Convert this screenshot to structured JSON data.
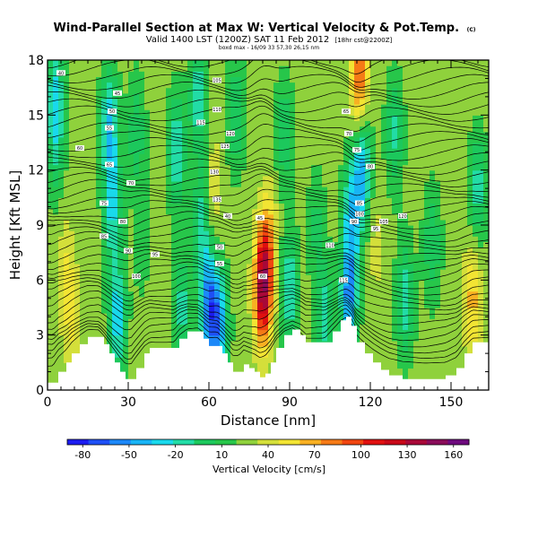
{
  "chart_data": {
    "type": "heatmap",
    "title": "Wind-Parallel Section at Max W: Vertical Velocity & Pot.Temp.",
    "title_mark": "(C)",
    "subtitle": "Valid 1400 LST (1200Z) SAT 11 Feb 2012",
    "subtitle_note": "[18hr cst@2200Z]",
    "credit": "boxd max - 16/09 33 57,30 26,15 nm",
    "xlabel": "Distance [nm]",
    "ylabel": "Height [Kft MSL]",
    "xlim": [
      0,
      164
    ],
    "ylim": [
      0,
      18
    ],
    "x_ticks": [
      0,
      30,
      60,
      90,
      120,
      150
    ],
    "y_ticks": [
      0,
      3,
      6,
      9,
      12,
      15,
      18
    ],
    "colorbar": {
      "label": "Vertical Velocity [cm/s]",
      "ticks": [
        -80,
        -50,
        -20,
        10,
        40,
        70,
        100,
        130,
        160
      ],
      "range": [
        -90,
        170
      ],
      "colors": [
        "#1c1cf0",
        "#1e4ff5",
        "#1c88f8",
        "#18b4f5",
        "#19d9ec",
        "#22dca6",
        "#1cc85c",
        "#27c64a",
        "#8fd13c",
        "#d4df3a",
        "#f2e433",
        "#f8b022",
        "#f57a16",
        "#f04510",
        "#e01010",
        "#c80818",
        "#a80838",
        "#8a0c5a",
        "#6e0a7e"
      ]
    },
    "series": [
      {
        "name": "Vertical Velocity [cm/s]",
        "type": "heatmap",
        "unit": "cm/s",
        "background_value": 25,
        "cores": [
          {
            "x": 3,
            "y": 16.5,
            "w": -20
          },
          {
            "x": 3,
            "y": 13.5,
            "w": -10
          },
          {
            "x": 7,
            "y": 6,
            "w": 55
          },
          {
            "x": 10,
            "y": 3,
            "w": 45
          },
          {
            "x": 23,
            "y": 14.5,
            "w": -40
          },
          {
            "x": 24,
            "y": 10,
            "w": -30
          },
          {
            "x": 26,
            "y": 4,
            "w": -40
          },
          {
            "x": 33,
            "y": 14,
            "w": -10
          },
          {
            "x": 35,
            "y": 8,
            "w": 10
          },
          {
            "x": 48,
            "y": 13,
            "w": -30
          },
          {
            "x": 50,
            "y": 4.5,
            "w": -20
          },
          {
            "x": 56,
            "y": 16,
            "w": -25
          },
          {
            "x": 57,
            "y": 9,
            "w": -20
          },
          {
            "x": 60,
            "y": 4.5,
            "w": -70
          },
          {
            "x": 62,
            "y": 11,
            "w": 45
          },
          {
            "x": 64,
            "y": 3.5,
            "w": -50
          },
          {
            "x": 70,
            "y": 15,
            "w": -15
          },
          {
            "x": 80,
            "y": 5.5,
            "w": 150
          },
          {
            "x": 82,
            "y": 8,
            "w": 70
          },
          {
            "x": 90,
            "y": 5.5,
            "w": -30
          },
          {
            "x": 88,
            "y": 14,
            "w": -10
          },
          {
            "x": 100,
            "y": 9,
            "w": 0
          },
          {
            "x": 103,
            "y": 4,
            "w": -20
          },
          {
            "x": 112,
            "y": 5,
            "w": -60
          },
          {
            "x": 113,
            "y": 9.5,
            "w": -40
          },
          {
            "x": 116,
            "y": 17,
            "w": 95
          },
          {
            "x": 117,
            "y": 12,
            "w": -50
          },
          {
            "x": 122,
            "y": 8,
            "w": 40
          },
          {
            "x": 129,
            "y": 14,
            "w": -15
          },
          {
            "x": 133,
            "y": 5,
            "w": -25
          },
          {
            "x": 143,
            "y": 8,
            "w": -10
          },
          {
            "x": 158,
            "y": 5,
            "w": 70
          },
          {
            "x": 160,
            "y": 11,
            "w": -20
          }
        ]
      },
      {
        "name": "Potential Temperature",
        "type": "contour",
        "contour_labels": [
          "40",
          "45",
          "50",
          "55",
          "60",
          "65",
          "70",
          "75",
          "80",
          "85",
          "90",
          "95",
          "100",
          "105",
          "110",
          "115",
          "120",
          "125",
          "130",
          "135"
        ]
      }
    ],
    "terrain_nm_kft": [
      [
        0,
        0.4
      ],
      [
        2,
        0.4
      ],
      [
        4,
        1.0
      ],
      [
        7,
        1.5
      ],
      [
        9,
        2.0
      ],
      [
        12,
        2.5
      ],
      [
        15,
        2.9
      ],
      [
        19,
        2.9
      ],
      [
        21,
        2.5
      ],
      [
        23,
        2.0
      ],
      [
        25,
        1.5
      ],
      [
        27,
        1.0
      ],
      [
        29,
        0.6
      ],
      [
        31,
        0.6
      ],
      [
        33,
        1.2
      ],
      [
        36,
        2.0
      ],
      [
        38,
        2.3
      ],
      [
        43,
        2.3
      ],
      [
        47,
        2.3
      ],
      [
        49,
        2.8
      ],
      [
        52,
        3.2
      ],
      [
        56,
        3.2
      ],
      [
        58,
        2.8
      ],
      [
        60,
        2.4
      ],
      [
        63,
        2.4
      ],
      [
        65,
        2.0
      ],
      [
        67,
        1.5
      ],
      [
        69,
        1.0
      ],
      [
        71,
        1.0
      ],
      [
        73,
        1.4
      ],
      [
        75,
        1.2
      ],
      [
        77,
        1.0
      ],
      [
        79,
        0.7
      ],
      [
        81,
        0.9
      ],
      [
        83,
        1.5
      ],
      [
        85,
        2.3
      ],
      [
        88,
        3.0
      ],
      [
        91,
        3.3
      ],
      [
        94,
        3.0
      ],
      [
        96,
        2.6
      ],
      [
        99,
        2.6
      ],
      [
        103,
        2.6
      ],
      [
        106,
        3.2
      ],
      [
        109,
        3.8
      ],
      [
        111,
        4.0
      ],
      [
        113,
        3.5
      ],
      [
        115,
        2.6
      ],
      [
        118,
        2.0
      ],
      [
        121,
        1.5
      ],
      [
        124,
        1.1
      ],
      [
        127,
        0.8
      ],
      [
        132,
        0.6
      ],
      [
        140,
        0.6
      ],
      [
        148,
        0.8
      ],
      [
        152,
        1.2
      ],
      [
        155,
        2.0
      ],
      [
        158,
        2.6
      ],
      [
        164,
        2.6
      ]
    ]
  }
}
